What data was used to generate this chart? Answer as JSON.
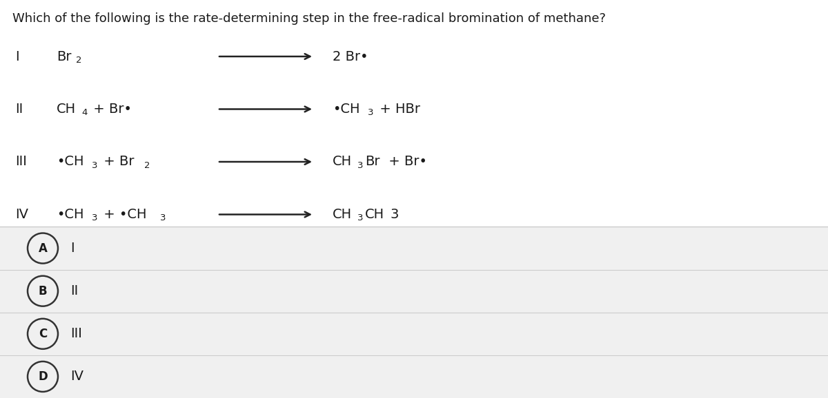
{
  "title": "Which of the following is the rate-determining step in the free-radical bromination of methane?",
  "background_white": "#ffffff",
  "background_gray": "#f0f0f0",
  "text_color": "#1a1a1a",
  "separator_color": "#cccccc",
  "arrow_color": "#222222",
  "circle_edge": "#333333",
  "reactions": [
    {
      "roman": "I",
      "reactant_parts": [
        [
          "Br",
          "2",
          ""
        ]
      ],
      "product_parts": [
        [
          "2 Br•",
          "",
          ""
        ]
      ]
    },
    {
      "roman": "II",
      "reactant_parts": [
        [
          "CH",
          "4",
          ""
        ],
        [
          " + Br•",
          "",
          ""
        ]
      ],
      "product_parts": [
        [
          "•CH",
          "3",
          ""
        ],
        [
          " + HBr",
          "",
          ""
        ]
      ]
    },
    {
      "roman": "III",
      "reactant_parts": [
        [
          "•CH",
          "3",
          ""
        ],
        [
          " + Br",
          "2",
          ""
        ]
      ],
      "product_parts": [
        [
          "CH",
          "3",
          "Br"
        ],
        [
          " + Br•",
          "",
          ""
        ]
      ]
    },
    {
      "roman": "IV",
      "reactant_parts": [
        [
          "•CH",
          "3",
          ""
        ],
        [
          " + •CH",
          "3",
          ""
        ]
      ],
      "product_parts": [
        [
          "CH",
          "3",
          "CH"
        ],
        [
          "3",
          "",
          ""
        ]
      ]
    }
  ],
  "choices": [
    {
      "label": "A",
      "text": "I"
    },
    {
      "label": "B",
      "text": "II"
    },
    {
      "label": "C",
      "text": "III"
    },
    {
      "label": "D",
      "text": "IV"
    }
  ],
  "font_size_title": 13,
  "font_size_reaction": 14,
  "font_size_roman": 14,
  "font_size_choice_label": 12,
  "font_size_choice_text": 14,
  "font_size_sub": 9.5
}
